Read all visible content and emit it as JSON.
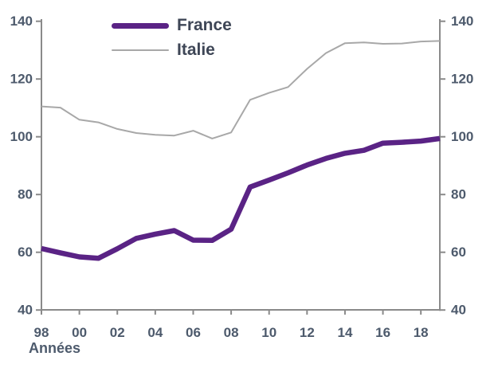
{
  "chart_data": {
    "type": "line",
    "title": "",
    "xlabel": "Années",
    "ylabel": "",
    "x": [
      1998,
      1999,
      2000,
      2001,
      2002,
      2003,
      2004,
      2005,
      2006,
      2007,
      2008,
      2009,
      2010,
      2011,
      2012,
      2013,
      2014,
      2015,
      2016,
      2017,
      2018,
      2019
    ],
    "series": [
      {
        "name": "France",
        "color": "#5a2385",
        "values": [
          61.3,
          59.8,
          58.4,
          57.9,
          61.2,
          64.8,
          66.3,
          67.5,
          64.2,
          64.1,
          68.0,
          82.6,
          85.0,
          87.5,
          90.2,
          92.5,
          94.3,
          95.3,
          97.8,
          98.1,
          98.5,
          99.4
        ]
      },
      {
        "name": "Italie",
        "color": "#a8a8a8",
        "values": [
          110.5,
          110.1,
          105.9,
          105.0,
          102.7,
          101.3,
          100.7,
          100.4,
          102.1,
          99.4,
          101.5,
          112.8,
          115.2,
          117.2,
          123.5,
          129.0,
          132.4,
          132.7,
          132.2,
          132.3,
          133.0,
          133.2
        ]
      }
    ],
    "ylim": [
      40,
      140
    ],
    "yticks": [
      40,
      60,
      80,
      100,
      120,
      140
    ],
    "xticks": [
      1998,
      2000,
      2002,
      2004,
      2006,
      2008,
      2010,
      2012,
      2014,
      2016,
      2018
    ],
    "xtick_labels": [
      "98",
      "00",
      "02",
      "04",
      "06",
      "08",
      "10",
      "12",
      "14",
      "16",
      "18"
    ],
    "grid": false,
    "dual_y_axis": true,
    "legend_position": "top-inside"
  },
  "colors": {
    "axis": "#8a8a8a",
    "tick_label": "#4d5a6c",
    "legend_text": "#3e4656",
    "background": "#ffffff"
  }
}
